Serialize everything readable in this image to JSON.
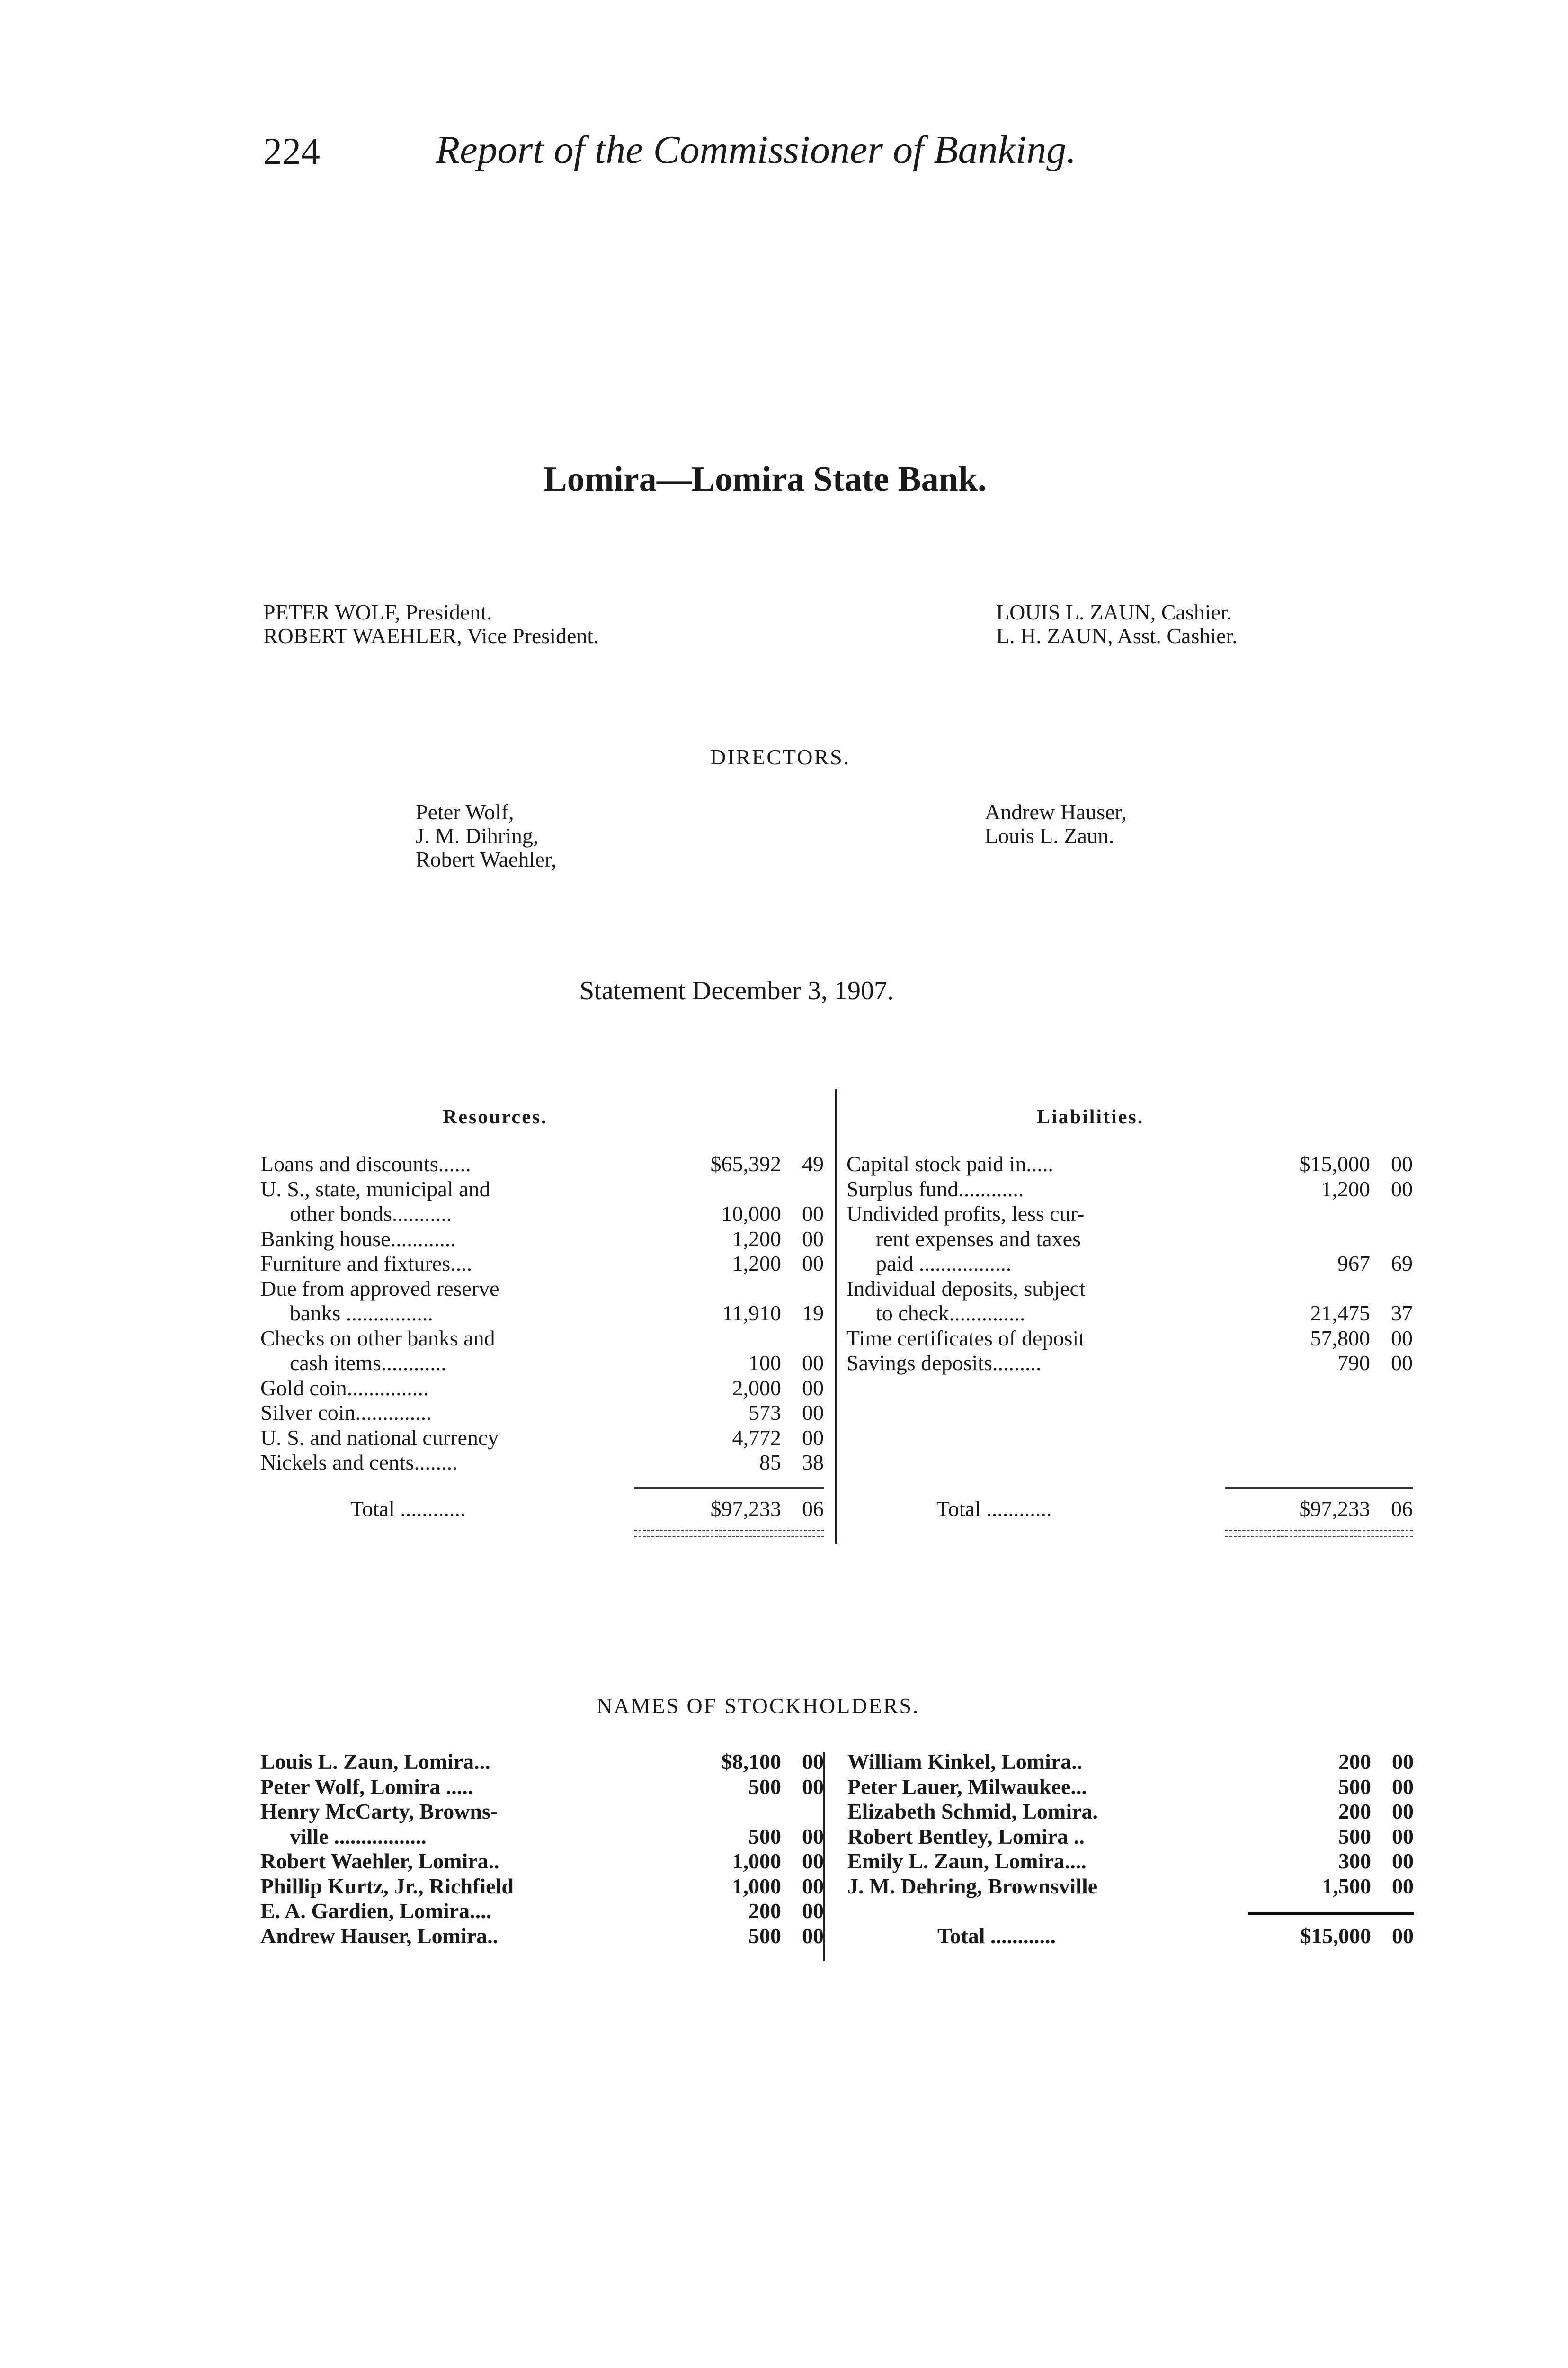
{
  "header": {
    "page_number": "224",
    "running_title": "Report of the Commissioner of Banking."
  },
  "bank_title": "Lomira—Lomira State Bank.",
  "officers": {
    "left": [
      "PETER WOLF, President.",
      "ROBERT WAEHLER, Vice President."
    ],
    "right": [
      "LOUIS L. ZAUN, Cashier.",
      "L. H. ZAUN, Asst. Cashier."
    ]
  },
  "directors": {
    "heading": "DIRECTORS.",
    "left": [
      "Peter Wolf,",
      "J. M. Dihring,",
      "Robert Waehler,"
    ],
    "right": [
      "Andrew Hauser,",
      "Louis L. Zaun."
    ]
  },
  "statement_title": "Statement December 3, 1907.",
  "resources": {
    "heading": "Resources.",
    "rows": [
      {
        "label": "Loans and discounts......",
        "dollars": "$65,392",
        "cents": "49",
        "indent": false
      },
      {
        "label": "U. S., state, municipal and",
        "dollars": "",
        "cents": "",
        "indent": false
      },
      {
        "label": "other bonds...........",
        "dollars": "10,000",
        "cents": "00",
        "indent": true
      },
      {
        "label": "Banking house............",
        "dollars": "1,200",
        "cents": "00",
        "indent": false
      },
      {
        "label": "Furniture and fixtures....",
        "dollars": "1,200",
        "cents": "00",
        "indent": false
      },
      {
        "label": "Due from approved reserve",
        "dollars": "",
        "cents": "",
        "indent": false
      },
      {
        "label": "banks ................",
        "dollars": "11,910",
        "cents": "19",
        "indent": true
      },
      {
        "label": "Checks on other banks and",
        "dollars": "",
        "cents": "",
        "indent": false
      },
      {
        "label": "cash items............",
        "dollars": "100",
        "cents": "00",
        "indent": true
      },
      {
        "label": "Gold coin...............",
        "dollars": "2,000",
        "cents": "00",
        "indent": false
      },
      {
        "label": "Silver coin..............",
        "dollars": "573",
        "cents": "00",
        "indent": false
      },
      {
        "label": "U. S. and national currency",
        "dollars": "4,772",
        "cents": "00",
        "indent": false
      },
      {
        "label": "Nickels and cents........",
        "dollars": "85",
        "cents": "38",
        "indent": false
      }
    ],
    "total": {
      "label": "Total ............",
      "dollars": "$97,233",
      "cents": "06"
    }
  },
  "liabilities": {
    "heading": "Liabilities.",
    "rows": [
      {
        "label": "Capital stock paid in.....",
        "dollars": "$15,000",
        "cents": "00",
        "indent": false
      },
      {
        "label": "Surplus fund............",
        "dollars": "1,200",
        "cents": "00",
        "indent": false
      },
      {
        "label": "Undivided profits, less cur-",
        "dollars": "",
        "cents": "",
        "indent": false
      },
      {
        "label": "rent expenses and taxes",
        "dollars": "",
        "cents": "",
        "indent": true
      },
      {
        "label": "paid .................",
        "dollars": "967",
        "cents": "69",
        "indent": true
      },
      {
        "label": "Individual deposits, subject",
        "dollars": "",
        "cents": "",
        "indent": false
      },
      {
        "label": "to check..............",
        "dollars": "21,475",
        "cents": "37",
        "indent": true
      },
      {
        "label": "Time certificates of deposit",
        "dollars": "57,800",
        "cents": "00",
        "indent": false
      },
      {
        "label": "Savings deposits.........",
        "dollars": "790",
        "cents": "00",
        "indent": false
      }
    ],
    "total": {
      "label": "Total ............",
      "dollars": "$97,233",
      "cents": "06"
    }
  },
  "stockholders": {
    "heading": "NAMES OF STOCKHOLDERS.",
    "left": [
      {
        "label": "Louis L. Zaun, Lomira...",
        "dollars": "$8,100",
        "cents": "00",
        "indent": false
      },
      {
        "label": "Peter Wolf, Lomira .....",
        "dollars": "500",
        "cents": "00",
        "indent": false
      },
      {
        "label": "Henry McCarty, Browns-",
        "dollars": "",
        "cents": "",
        "indent": false
      },
      {
        "label": "ville .................",
        "dollars": "500",
        "cents": "00",
        "indent": true
      },
      {
        "label": "Robert Waehler, Lomira..",
        "dollars": "1,000",
        "cents": "00",
        "indent": false
      },
      {
        "label": "Phillip Kurtz, Jr., Richfield",
        "dollars": "1,000",
        "cents": "00",
        "indent": false
      },
      {
        "label": "E. A. Gardien, Lomira....",
        "dollars": "200",
        "cents": "00",
        "indent": false
      },
      {
        "label": "Andrew Hauser, Lomira..",
        "dollars": "500",
        "cents": "00",
        "indent": false
      }
    ],
    "right": [
      {
        "label": "William Kinkel, Lomira..",
        "dollars": "200",
        "cents": "00",
        "indent": false
      },
      {
        "label": "Peter Lauer, Milwaukee...",
        "dollars": "500",
        "cents": "00",
        "indent": false
      },
      {
        "label": "Elizabeth Schmid, Lomira.",
        "dollars": "200",
        "cents": "00",
        "indent": false
      },
      {
        "label": "Robert Bentley, Lomira ..",
        "dollars": "500",
        "cents": "00",
        "indent": false
      },
      {
        "label": "Emily L. Zaun, Lomira....",
        "dollars": "300",
        "cents": "00",
        "indent": false
      },
      {
        "label": "J. M. Dehring, Brownsville",
        "dollars": "1,500",
        "cents": "00",
        "indent": false
      }
    ],
    "total": {
      "label": "Total ............",
      "dollars": "$15,000",
      "cents": "00"
    }
  }
}
